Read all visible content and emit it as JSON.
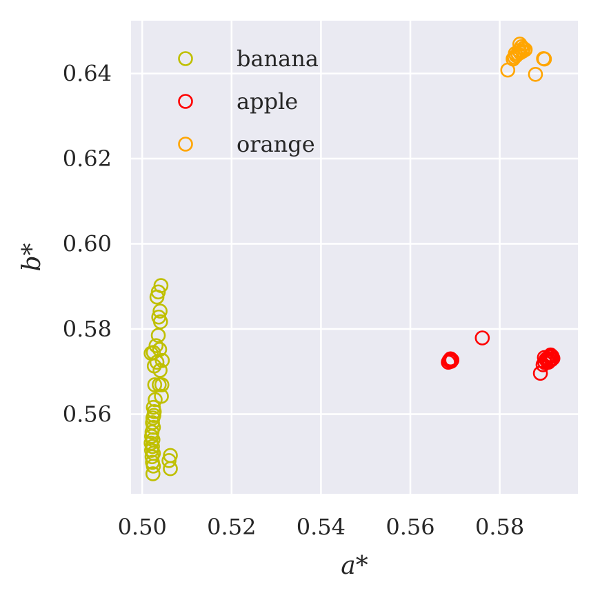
{
  "chart_data": {
    "type": "scatter",
    "xlabel": "a*",
    "ylabel": "b*",
    "xlim": [
      0.4975,
      0.5975
    ],
    "ylim": [
      0.5413,
      0.6524
    ],
    "xticks": [
      0.5,
      0.52,
      0.54,
      0.56,
      0.58
    ],
    "yticks": [
      0.56,
      0.58,
      0.6,
      0.62,
      0.64
    ],
    "xtick_labels": [
      "0.50",
      "0.52",
      "0.54",
      "0.56",
      "0.58"
    ],
    "ytick_labels": [
      "0.56",
      "0.58",
      "0.60",
      "0.62",
      "0.64"
    ],
    "grid": true,
    "legend_position": "top-left",
    "marker": "open-circle",
    "series": [
      {
        "name": "banana",
        "color": "#bfbf00",
        "points": [
          [
            0.5042,
            0.5902
          ],
          [
            0.5036,
            0.5887
          ],
          [
            0.5033,
            0.5875
          ],
          [
            0.504,
            0.5842
          ],
          [
            0.5037,
            0.5828
          ],
          [
            0.5041,
            0.5817
          ],
          [
            0.5036,
            0.5785
          ],
          [
            0.5031,
            0.5761
          ],
          [
            0.5039,
            0.5752
          ],
          [
            0.5025,
            0.5745
          ],
          [
            0.502,
            0.5743
          ],
          [
            0.5045,
            0.5726
          ],
          [
            0.5033,
            0.5722
          ],
          [
            0.5027,
            0.5713
          ],
          [
            0.504,
            0.5703
          ],
          [
            0.5028,
            0.5669
          ],
          [
            0.5044,
            0.5669
          ],
          [
            0.5038,
            0.5669
          ],
          [
            0.5043,
            0.5642
          ],
          [
            0.5029,
            0.5634
          ],
          [
            0.5025,
            0.5616
          ],
          [
            0.5027,
            0.5606
          ],
          [
            0.5026,
            0.5597
          ],
          [
            0.5024,
            0.5591
          ],
          [
            0.5023,
            0.558
          ],
          [
            0.5025,
            0.5569
          ],
          [
            0.5022,
            0.5558
          ],
          [
            0.5021,
            0.5548
          ],
          [
            0.5024,
            0.554
          ],
          [
            0.502,
            0.5532
          ],
          [
            0.5023,
            0.5524
          ],
          [
            0.5021,
            0.5515
          ],
          [
            0.5025,
            0.5508
          ],
          [
            0.5022,
            0.55
          ],
          [
            0.5063,
            0.5503
          ],
          [
            0.506,
            0.5491
          ],
          [
            0.5023,
            0.5487
          ],
          [
            0.5025,
            0.5478
          ],
          [
            0.5063,
            0.5472
          ],
          [
            0.5024,
            0.546
          ]
        ]
      },
      {
        "name": "apple",
        "color": "#ff0000",
        "points": [
          [
            0.5761,
            0.5779
          ],
          [
            0.5685,
            0.5722
          ],
          [
            0.5687,
            0.5726
          ],
          [
            0.569,
            0.573
          ],
          [
            0.5693,
            0.5727
          ],
          [
            0.5691,
            0.5724
          ],
          [
            0.5891,
            0.5696
          ],
          [
            0.5897,
            0.5716
          ],
          [
            0.5901,
            0.5721
          ],
          [
            0.5905,
            0.5726
          ],
          [
            0.5908,
            0.5731
          ],
          [
            0.5911,
            0.5735
          ],
          [
            0.5914,
            0.5739
          ],
          [
            0.5917,
            0.5736
          ],
          [
            0.5919,
            0.5731
          ],
          [
            0.5916,
            0.5728
          ],
          [
            0.5912,
            0.5725
          ],
          [
            0.5909,
            0.5722
          ],
          [
            0.5904,
            0.5729
          ],
          [
            0.59,
            0.5733
          ]
        ]
      },
      {
        "name": "orange",
        "color": "#ffa500",
        "points": [
          [
            0.5845,
            0.6469
          ],
          [
            0.5849,
            0.6463
          ],
          [
            0.5853,
            0.6459
          ],
          [
            0.5857,
            0.6456
          ],
          [
            0.5851,
            0.6452
          ],
          [
            0.5846,
            0.6449
          ],
          [
            0.5841,
            0.6446
          ],
          [
            0.5837,
            0.6442
          ],
          [
            0.5833,
            0.6438
          ],
          [
            0.583,
            0.6434
          ],
          [
            0.5843,
            0.6454
          ],
          [
            0.5835,
            0.6447
          ],
          [
            0.59,
            0.6434
          ],
          [
            0.5898,
            0.6435
          ],
          [
            0.5818,
            0.6408
          ],
          [
            0.588,
            0.6398
          ]
        ]
      }
    ]
  }
}
